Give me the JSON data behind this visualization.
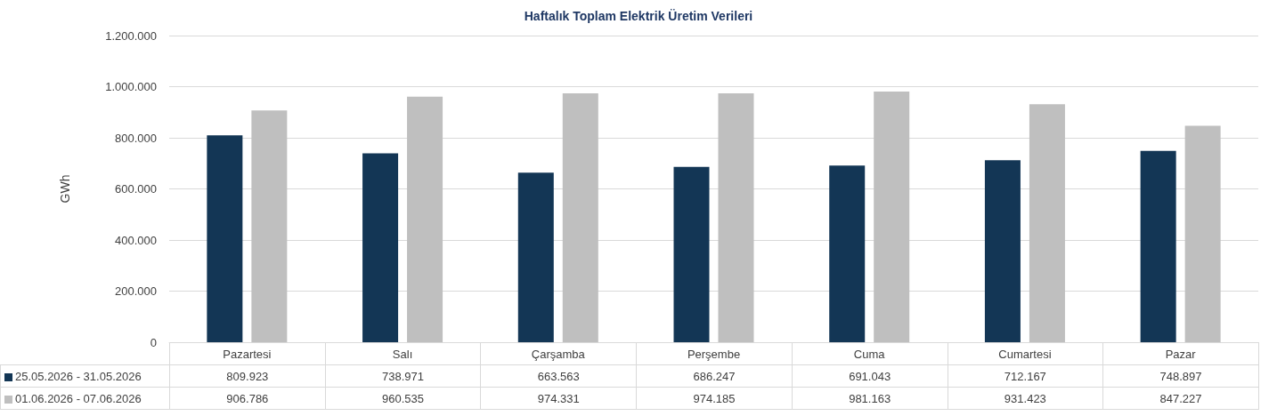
{
  "chart_data": {
    "type": "bar",
    "title": "Haftalık Toplam Elektrik Üretim Verileri",
    "ylabel": "GWh",
    "categories": [
      "Pazartesi",
      "Salı",
      "Çarşamba",
      "Perşembe",
      "Cuma",
      "Cumartesi",
      "Pazar"
    ],
    "series": [
      {
        "name": "25.05.2026 - 31.05.2026",
        "color": "#133655",
        "values": [
          809923,
          738971,
          663563,
          686247,
          691043,
          712167,
          748897
        ],
        "value_labels": [
          "809.923",
          "738.971",
          "663.563",
          "686.247",
          "691.043",
          "712.167",
          "748.897"
        ]
      },
      {
        "name": "01.06.2026 - 07.06.2026",
        "color": "#bfbfbf",
        "values": [
          906786,
          960535,
          974331,
          974185,
          981163,
          931423,
          847227
        ],
        "value_labels": [
          "906.786",
          "960.535",
          "974.331",
          "974.185",
          "981.163",
          "931.423",
          "847.227"
        ]
      }
    ],
    "ylim": [
      0,
      1200000
    ],
    "yticks": [
      0,
      {
        "value": 200000,
        "label": "200.000"
      },
      {
        "value": 400000,
        "label": "400.000"
      },
      {
        "value": 600000,
        "label": "600.000"
      },
      {
        "value": 800000,
        "label": "800.000"
      },
      {
        "value": 1000000,
        "label": "1.000.000"
      },
      {
        "value": 1200000,
        "label": "1.200.000"
      }
    ],
    "grid": "y",
    "legend": "bottom"
  }
}
